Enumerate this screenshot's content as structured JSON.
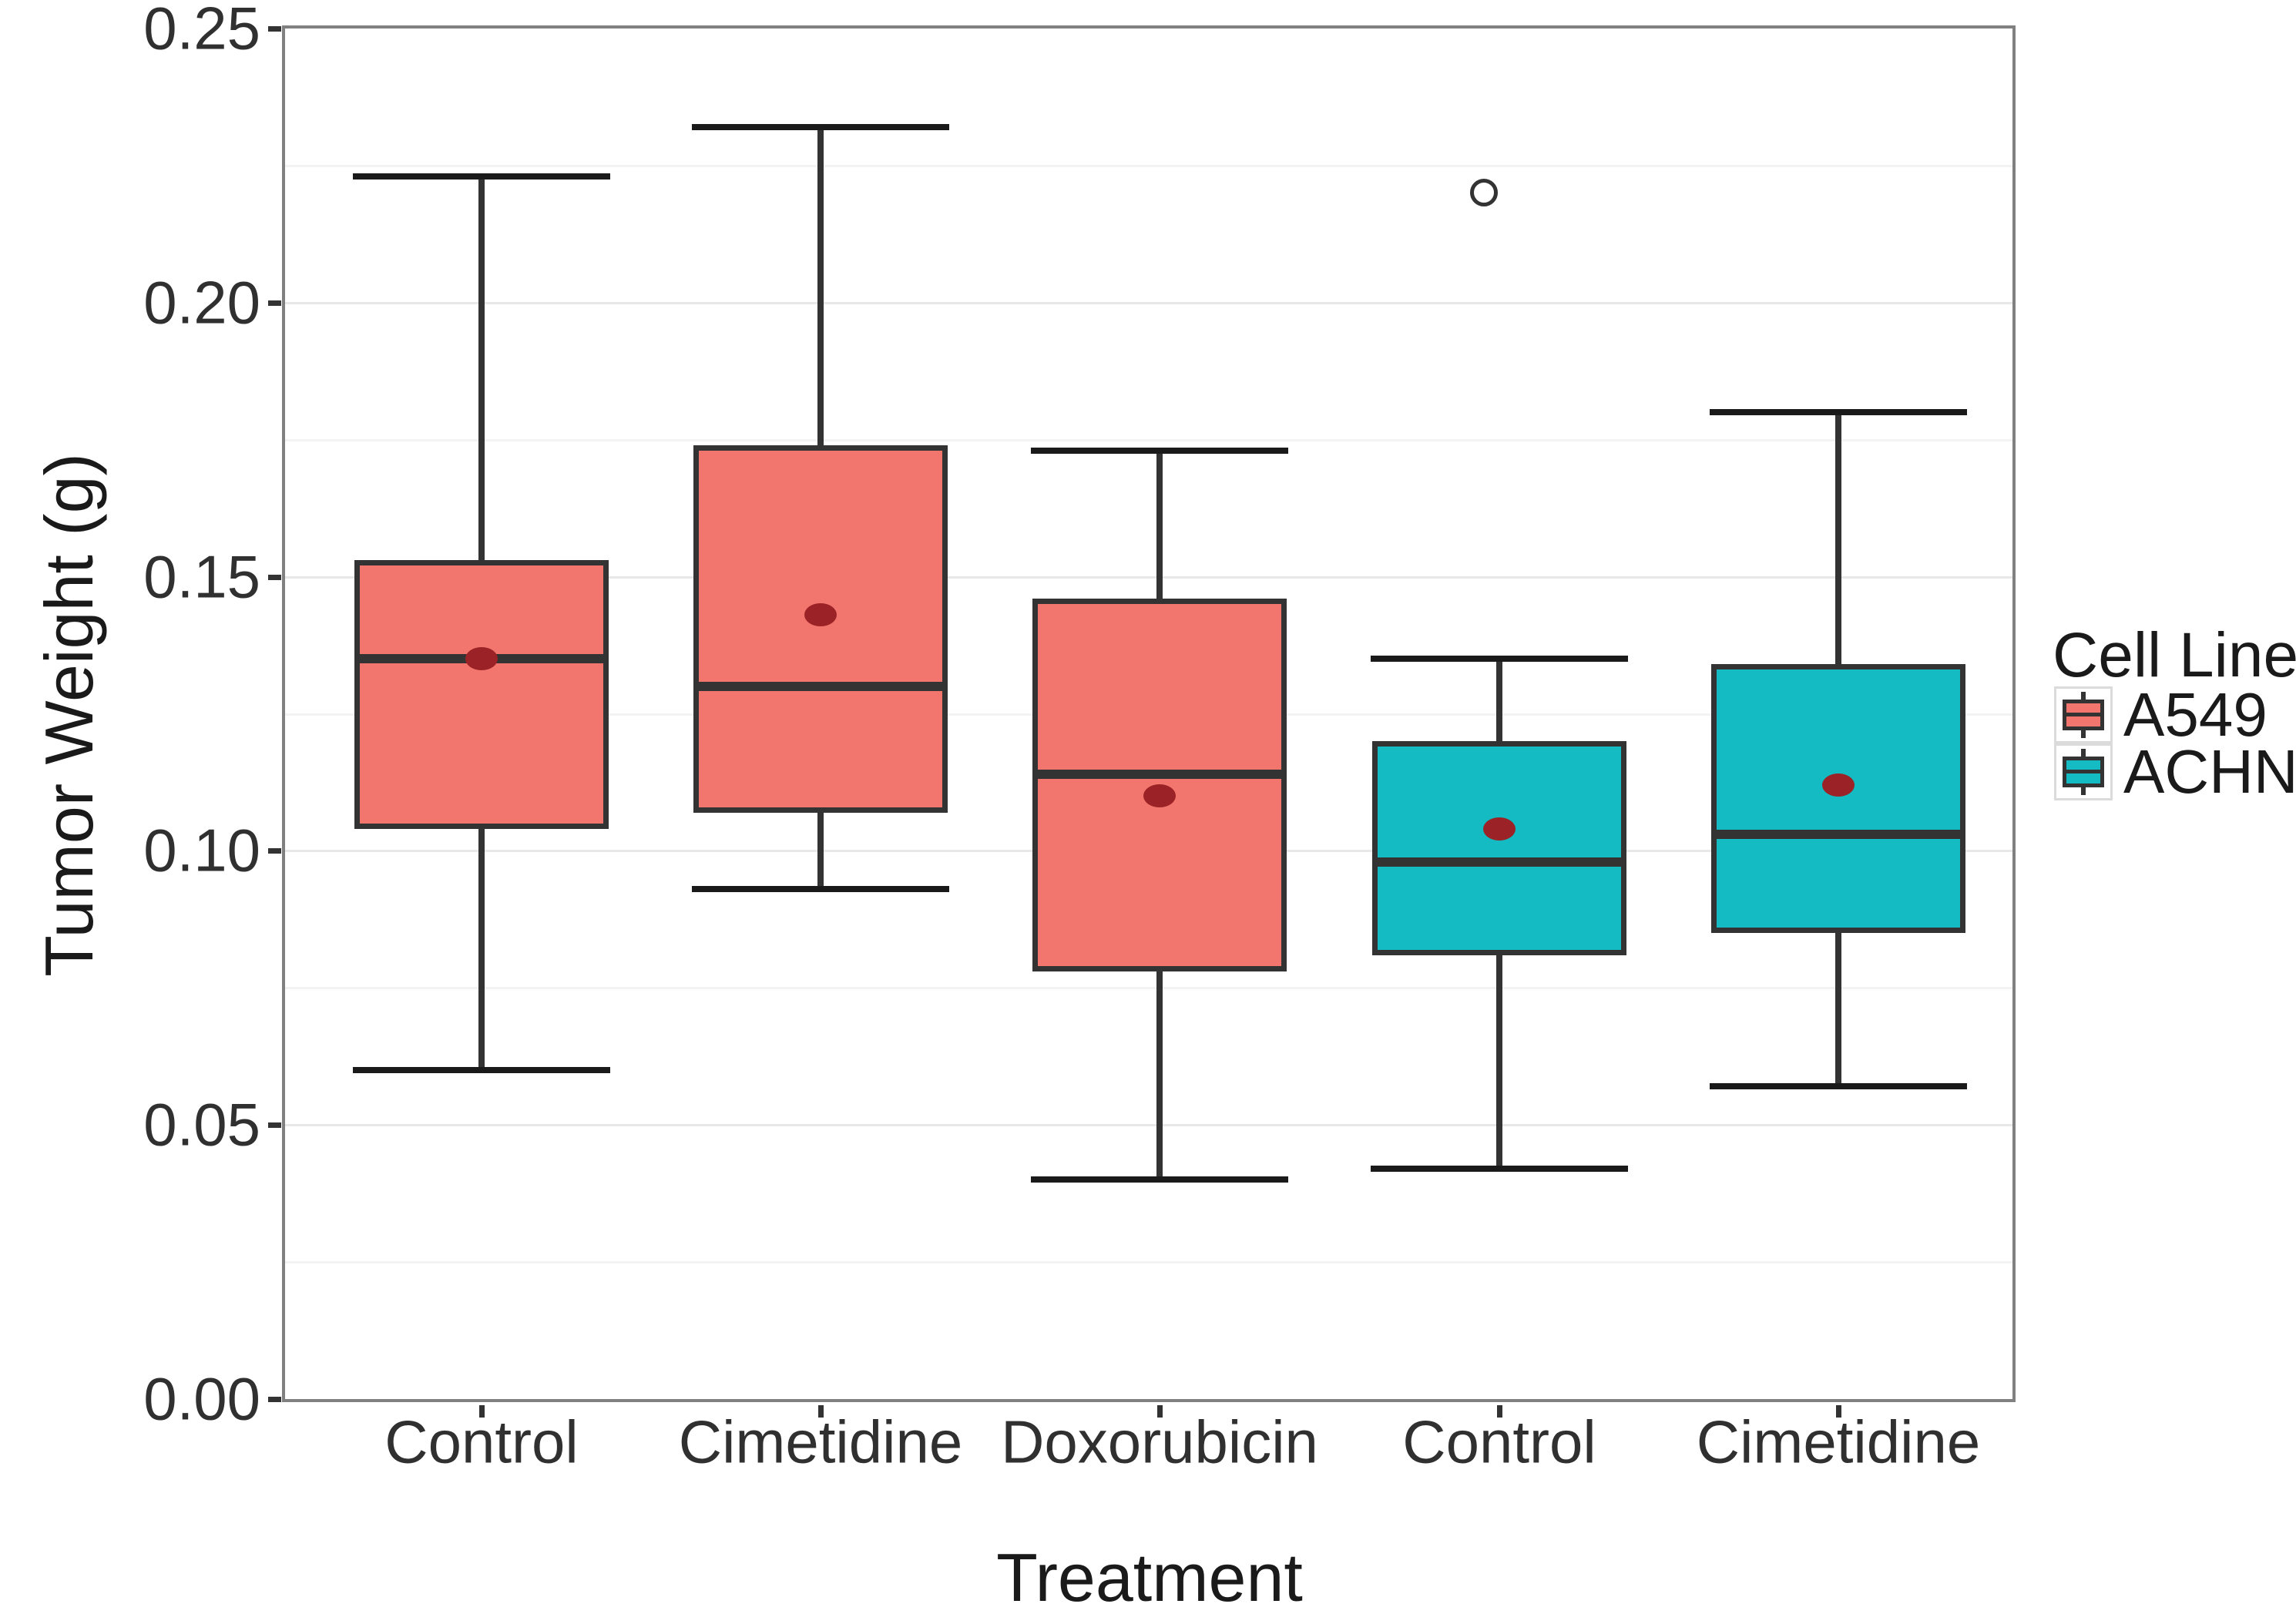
{
  "chart_data": {
    "type": "boxplot",
    "title": "",
    "xlabel": "Treatment",
    "ylabel": "Tumor Weight (g)",
    "ylim": [
      0,
      0.25
    ],
    "grid": "major and minor horizontal gridlines",
    "legend_position": "right",
    "y_tick_labels": [
      "0.00",
      "0.05",
      "0.10",
      "0.15",
      "0.20",
      "0.25"
    ],
    "y_major_values": [
      0.0,
      0.05,
      0.1,
      0.15,
      0.2,
      0.25
    ],
    "y_minor_values": [
      0.025,
      0.075,
      0.125,
      0.175,
      0.225
    ],
    "categories": [
      "Control",
      "Cimetidine",
      "Doxorubicin",
      "Control",
      "Cimetidine"
    ],
    "legend": {
      "title": "Cell Line",
      "entries": [
        {
          "label": "A549",
          "fill": "#F2766D"
        },
        {
          "label": "ACHN",
          "fill": "#14BBC3"
        }
      ]
    },
    "groups": [
      {
        "treatment": "Control",
        "cell_line": "A549",
        "fill": "#F2766D",
        "whisker_low": 0.06,
        "q1": 0.104,
        "median": 0.135,
        "q3": 0.153,
        "whisker_high": 0.223,
        "mean": 0.135,
        "outliers": []
      },
      {
        "treatment": "Cimetidine",
        "cell_line": "A549",
        "fill": "#F2766D",
        "whisker_low": 0.093,
        "q1": 0.107,
        "median": 0.13,
        "q3": 0.174,
        "whisker_high": 0.232,
        "mean": 0.143,
        "outliers": []
      },
      {
        "treatment": "Doxorubicin",
        "cell_line": "A549",
        "fill": "#F2766D",
        "whisker_low": 0.04,
        "q1": 0.078,
        "median": 0.114,
        "q3": 0.146,
        "whisker_high": 0.173,
        "mean": 0.11,
        "outliers": []
      },
      {
        "treatment": "Control",
        "cell_line": "ACHN",
        "fill": "#14BBC3",
        "whisker_low": 0.042,
        "q1": 0.081,
        "median": 0.098,
        "q3": 0.12,
        "whisker_high": 0.135,
        "mean": 0.104,
        "outliers": [
          0.22
        ]
      },
      {
        "treatment": "Cimetidine",
        "cell_line": "ACHN",
        "fill": "#14BBC3",
        "whisker_low": 0.057,
        "q1": 0.085,
        "median": 0.103,
        "q3": 0.134,
        "whisker_high": 0.18,
        "mean": 0.112,
        "outliers": []
      }
    ],
    "style": {
      "mean_dot_color": "#9B2226",
      "box_border_color": "#333333",
      "panel_border_color": "#808080",
      "grid_major_color": "#E8E8E8",
      "grid_minor_color": "#F3F3F3",
      "axis_text_color": "#303030"
    }
  }
}
